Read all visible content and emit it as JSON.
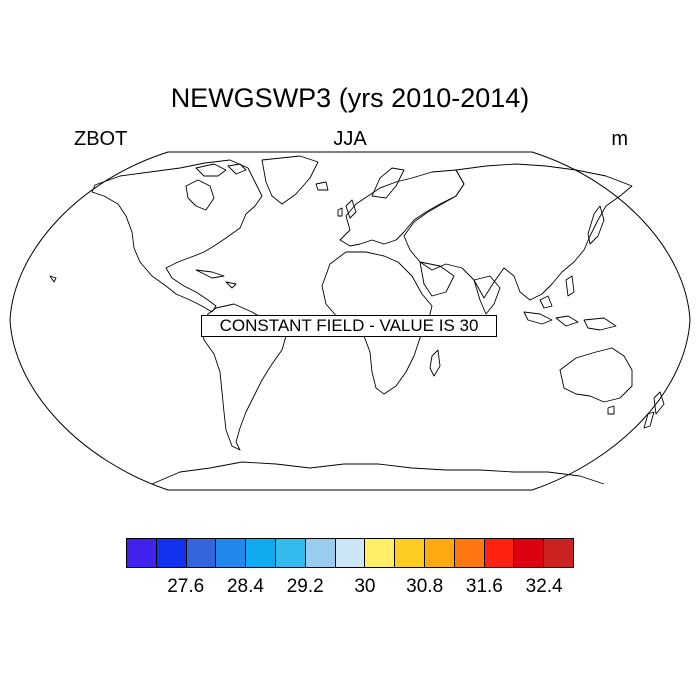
{
  "title": "NEWGSWP3 (yrs 2010-2014)",
  "subtitle_left": "ZBOT",
  "subtitle_center": "JJA",
  "subtitle_right": "m",
  "notice": "CONSTANT FIELD - VALUE IS 30",
  "colorbar": {
    "colors": [
      "#4422ee",
      "#1133ee",
      "#3366dd",
      "#2288ee",
      "#11aaee",
      "#33bbee",
      "#99ccee",
      "#cce6f7",
      "#ffee66",
      "#ffcc22",
      "#ffaa11",
      "#ff7711",
      "#ff2211",
      "#dd0011",
      "#cc2222"
    ],
    "labels": [
      {
        "text": "27.6",
        "slot": 2
      },
      {
        "text": "28.4",
        "slot": 4
      },
      {
        "text": "29.2",
        "slot": 6
      },
      {
        "text": "30",
        "slot": 8
      },
      {
        "text": "30.8",
        "slot": 10
      },
      {
        "text": "31.6",
        "slot": 12
      },
      {
        "text": "32.4",
        "slot": 14
      }
    ]
  }
}
